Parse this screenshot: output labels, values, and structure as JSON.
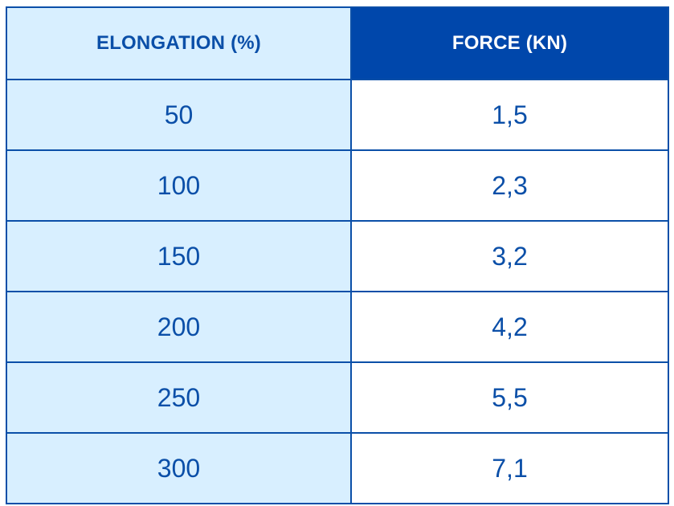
{
  "chart_data": {
    "type": "table",
    "columns": [
      "ELONGATION (%)",
      "FORCE (KN)"
    ],
    "rows": [
      [
        "50",
        "1,5"
      ],
      [
        "100",
        "2,3"
      ],
      [
        "150",
        "3,2"
      ],
      [
        "200",
        "4,2"
      ],
      [
        "250",
        "5,5"
      ],
      [
        "300",
        "7,1"
      ]
    ]
  },
  "colors": {
    "header_left_bg": "#d8efff",
    "header_right_bg": "#0047ab",
    "border": "#0b4fa8",
    "text": "#0b4fa8"
  }
}
